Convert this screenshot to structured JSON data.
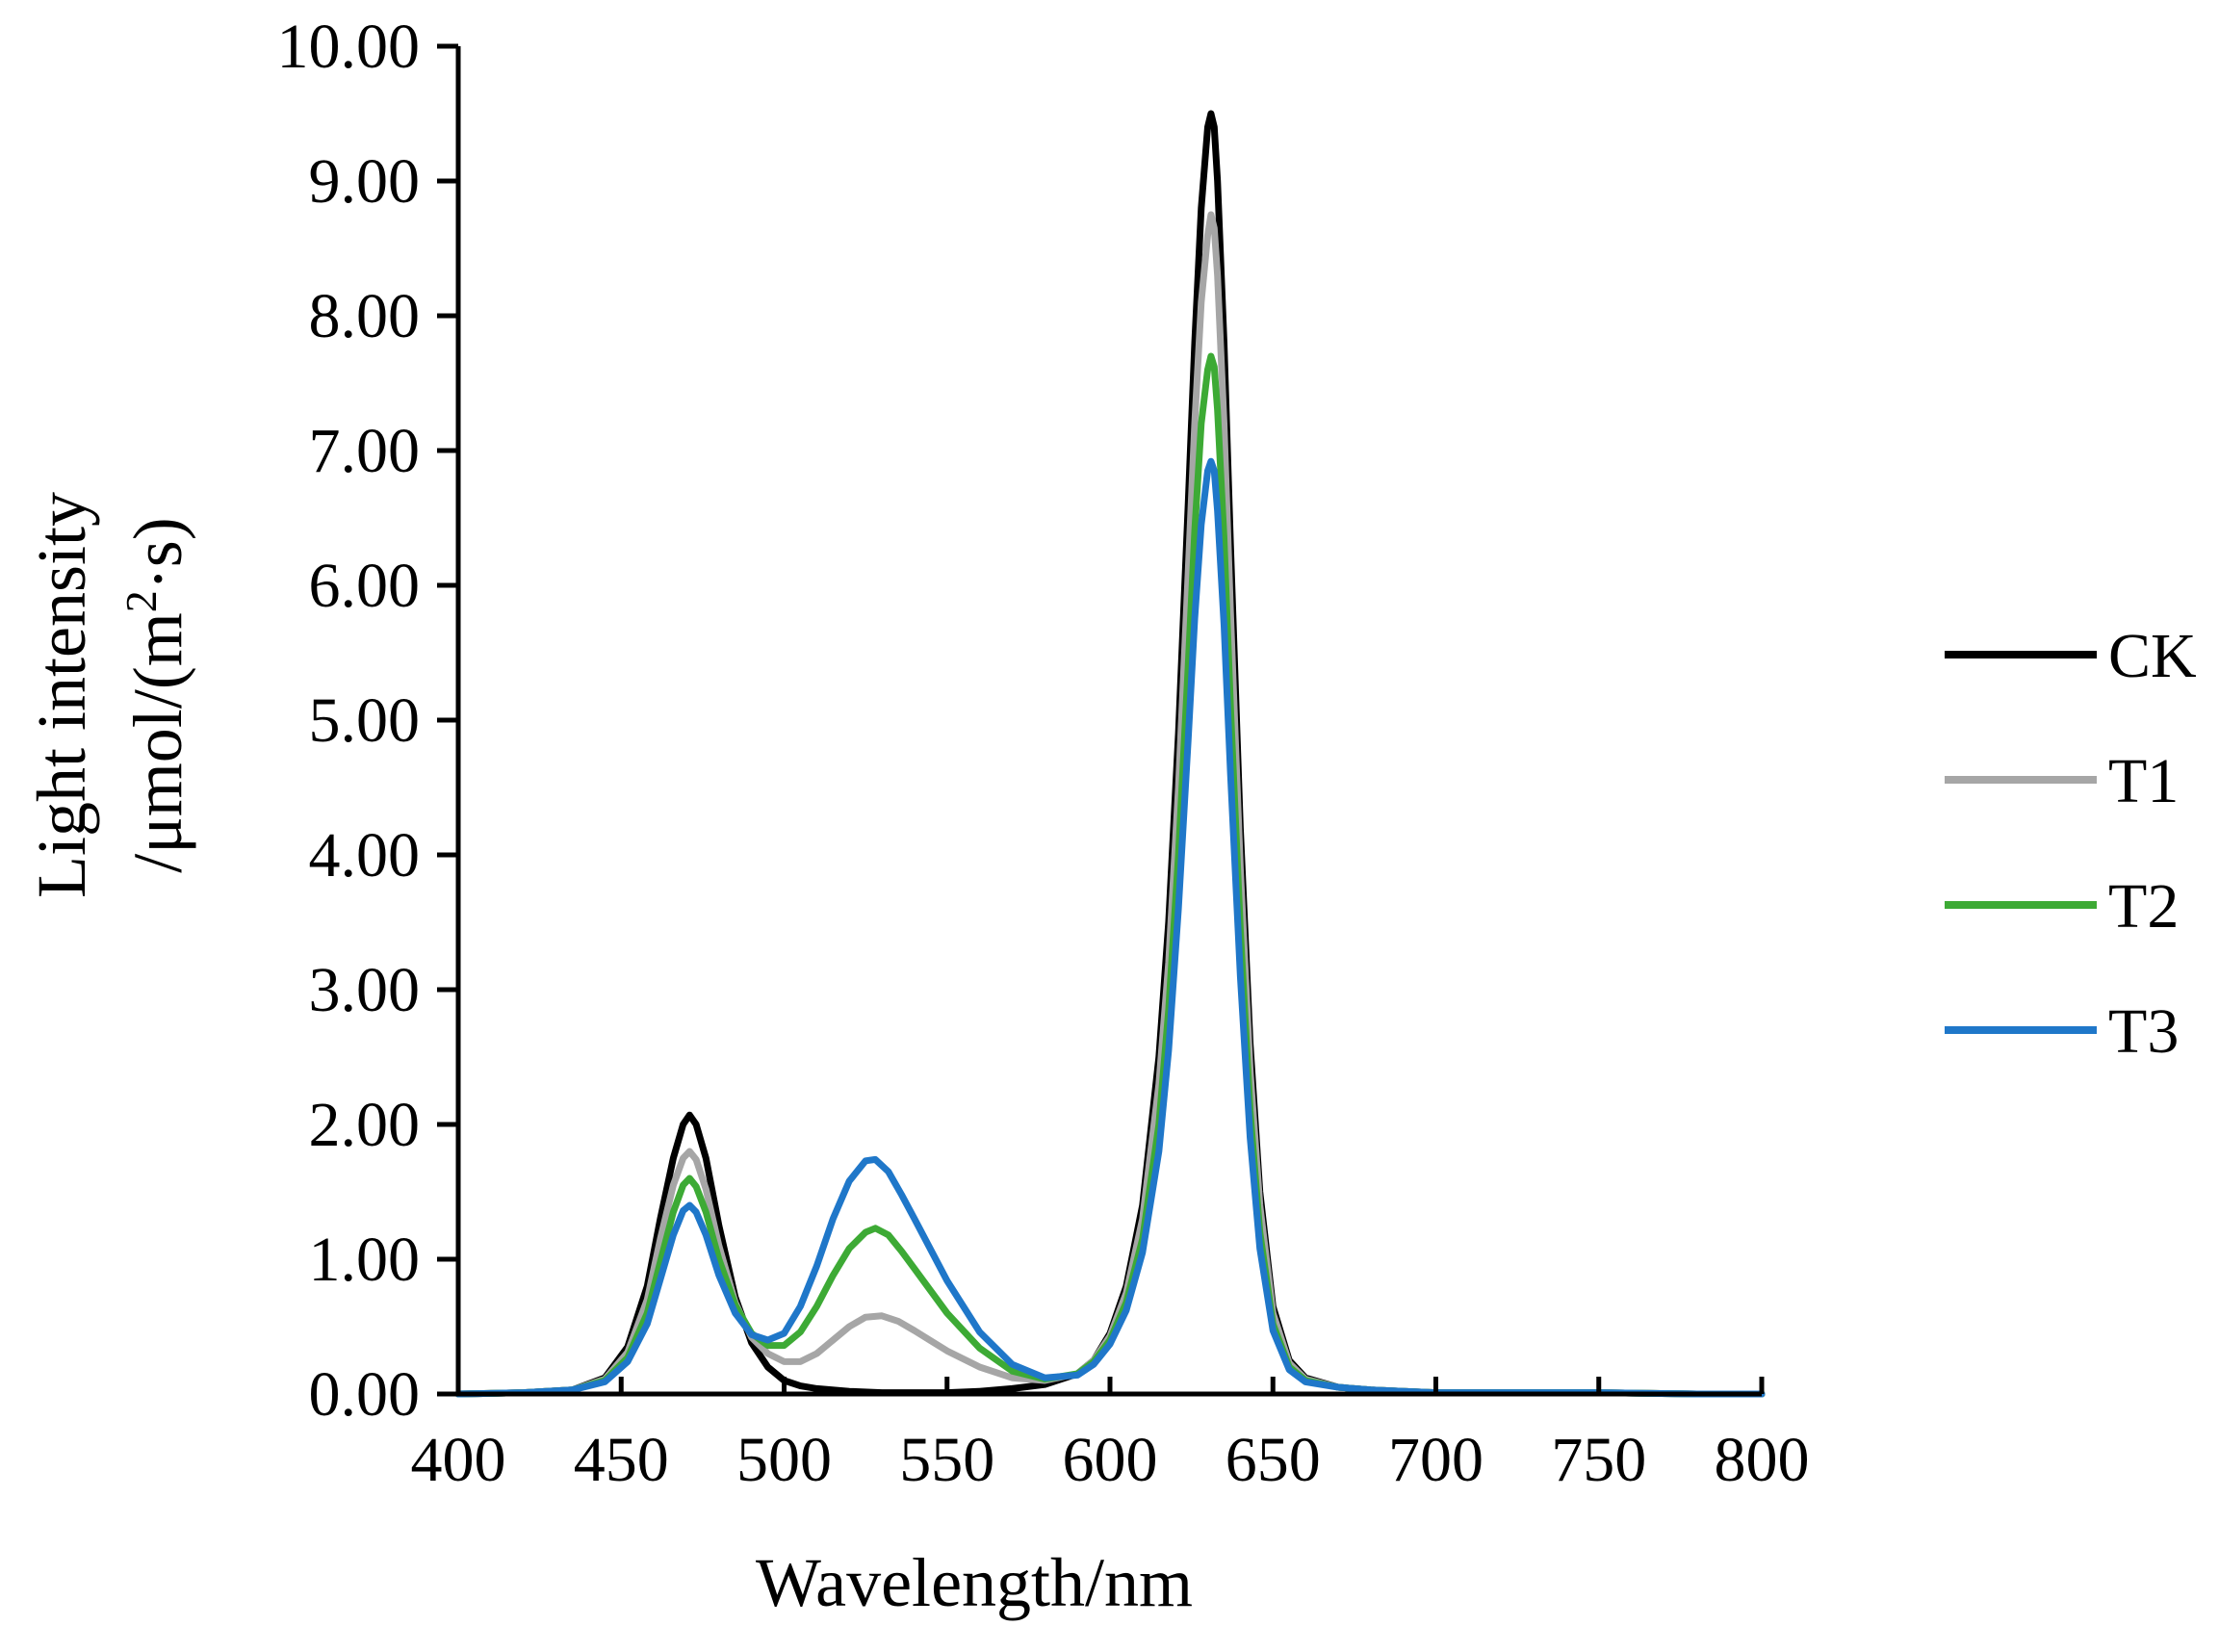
{
  "chart_data": {
    "type": "line",
    "xlabel": "Wavelength/nm",
    "ylabel_line1": "Light intensity",
    "ylabel_line2_prefix": "/μmol/(m",
    "ylabel_line2_sup": "2",
    "ylabel_line2_suffix": "·s)",
    "xlim": [
      400,
      800
    ],
    "ylim": [
      0,
      10
    ],
    "x_ticks": [
      {
        "value": 400,
        "label": "400"
      },
      {
        "value": 450,
        "label": "450"
      },
      {
        "value": 500,
        "label": "500"
      },
      {
        "value": 550,
        "label": "550"
      },
      {
        "value": 600,
        "label": "600"
      },
      {
        "value": 650,
        "label": "650"
      },
      {
        "value": 700,
        "label": "700"
      },
      {
        "value": 750,
        "label": "750"
      },
      {
        "value": 800,
        "label": "800"
      }
    ],
    "y_ticks": [
      {
        "value": 0,
        "label": "0.00"
      },
      {
        "value": 1,
        "label": "1.00"
      },
      {
        "value": 2,
        "label": "2.00"
      },
      {
        "value": 3,
        "label": "3.00"
      },
      {
        "value": 4,
        "label": "4.00"
      },
      {
        "value": 5,
        "label": "5.00"
      },
      {
        "value": 6,
        "label": "6.00"
      },
      {
        "value": 7,
        "label": "7.00"
      },
      {
        "value": 8,
        "label": "8.00"
      },
      {
        "value": 9,
        "label": "9.00"
      },
      {
        "value": 10,
        "label": "10.00"
      }
    ],
    "grid": false,
    "legend_position": "right",
    "series": [
      {
        "name": "CK",
        "color": "#000000",
        "x": [
          400,
          420,
          435,
          445,
          452,
          458,
          462,
          466,
          469,
          471,
          473,
          476,
          480,
          485,
          490,
          495,
          500,
          505,
          510,
          520,
          530,
          540,
          550,
          560,
          570,
          580,
          590,
          595,
          600,
          605,
          610,
          615,
          618,
          621,
          624,
          626,
          628,
          630,
          631,
          632,
          633,
          635,
          637,
          640,
          643,
          646,
          650,
          655,
          660,
          670,
          680,
          690,
          700,
          720,
          750,
          780,
          800
        ],
        "values": [
          0.0,
          0.01,
          0.03,
          0.12,
          0.35,
          0.8,
          1.3,
          1.75,
          2.0,
          2.07,
          2.0,
          1.75,
          1.25,
          0.72,
          0.38,
          0.2,
          0.1,
          0.06,
          0.04,
          0.02,
          0.01,
          0.01,
          0.01,
          0.02,
          0.04,
          0.07,
          0.15,
          0.25,
          0.45,
          0.8,
          1.4,
          2.5,
          3.5,
          4.9,
          6.6,
          7.8,
          8.8,
          9.4,
          9.5,
          9.4,
          9.0,
          7.8,
          6.3,
          4.2,
          2.6,
          1.5,
          0.65,
          0.25,
          0.12,
          0.05,
          0.03,
          0.02,
          0.01,
          0.01,
          0.01,
          0.0,
          0.0
        ]
      },
      {
        "name": "T1",
        "color": "#a6a6a6",
        "x": [
          400,
          420,
          435,
          445,
          452,
          458,
          462,
          466,
          469,
          471,
          473,
          476,
          480,
          485,
          490,
          495,
          500,
          505,
          510,
          515,
          520,
          525,
          530,
          535,
          540,
          550,
          560,
          570,
          580,
          590,
          595,
          600,
          605,
          610,
          615,
          618,
          621,
          624,
          626,
          628,
          630,
          631,
          632,
          633,
          635,
          637,
          640,
          643,
          646,
          650,
          655,
          660,
          670,
          680,
          690,
          700,
          720,
          750,
          780,
          800
        ],
        "values": [
          0.0,
          0.01,
          0.03,
          0.11,
          0.31,
          0.7,
          1.15,
          1.55,
          1.75,
          1.8,
          1.74,
          1.52,
          1.1,
          0.68,
          0.42,
          0.3,
          0.24,
          0.24,
          0.3,
          0.4,
          0.5,
          0.57,
          0.58,
          0.54,
          0.47,
          0.32,
          0.2,
          0.12,
          0.1,
          0.15,
          0.25,
          0.43,
          0.75,
          1.3,
          2.3,
          3.2,
          4.5,
          6.1,
          7.2,
          8.1,
          8.6,
          8.75,
          8.65,
          8.3,
          7.2,
          5.8,
          3.9,
          2.4,
          1.4,
          0.6,
          0.23,
          0.11,
          0.05,
          0.03,
          0.02,
          0.01,
          0.01,
          0.01,
          0.0,
          0.0
        ]
      },
      {
        "name": "T2",
        "color": "#3daa35",
        "x": [
          400,
          420,
          435,
          445,
          452,
          458,
          462,
          466,
          469,
          471,
          473,
          476,
          480,
          485,
          490,
          495,
          500,
          505,
          510,
          515,
          520,
          525,
          528,
          532,
          536,
          540,
          550,
          560,
          570,
          580,
          590,
          595,
          600,
          605,
          610,
          615,
          618,
          621,
          624,
          626,
          628,
          630,
          631,
          632,
          633,
          635,
          637,
          640,
          643,
          646,
          650,
          655,
          660,
          670,
          680,
          690,
          700,
          720,
          750,
          780,
          800
        ],
        "values": [
          0.0,
          0.01,
          0.03,
          0.1,
          0.27,
          0.6,
          0.98,
          1.35,
          1.55,
          1.6,
          1.54,
          1.35,
          1.0,
          0.66,
          0.45,
          0.36,
          0.36,
          0.46,
          0.65,
          0.88,
          1.08,
          1.2,
          1.23,
          1.18,
          1.06,
          0.93,
          0.6,
          0.34,
          0.17,
          0.11,
          0.15,
          0.24,
          0.4,
          0.68,
          1.15,
          2.0,
          2.85,
          4.0,
          5.4,
          6.4,
          7.2,
          7.6,
          7.7,
          7.62,
          7.3,
          6.35,
          5.1,
          3.45,
          2.1,
          1.2,
          0.52,
          0.2,
          0.1,
          0.05,
          0.03,
          0.02,
          0.01,
          0.01,
          0.01,
          0.0,
          0.0
        ]
      },
      {
        "name": "T3",
        "color": "#1f77c9",
        "x": [
          400,
          420,
          435,
          445,
          452,
          458,
          462,
          466,
          469,
          471,
          473,
          476,
          480,
          485,
          490,
          495,
          500,
          505,
          510,
          515,
          520,
          525,
          528,
          532,
          536,
          540,
          550,
          560,
          570,
          580,
          590,
          595,
          600,
          605,
          610,
          615,
          618,
          621,
          624,
          626,
          628,
          630,
          631,
          632,
          633,
          635,
          637,
          640,
          643,
          646,
          650,
          655,
          660,
          670,
          680,
          690,
          700,
          720,
          750,
          780,
          800
        ],
        "values": [
          0.0,
          0.01,
          0.03,
          0.09,
          0.24,
          0.52,
          0.85,
          1.18,
          1.36,
          1.4,
          1.35,
          1.18,
          0.88,
          0.6,
          0.44,
          0.4,
          0.45,
          0.65,
          0.95,
          1.3,
          1.58,
          1.73,
          1.74,
          1.65,
          1.48,
          1.3,
          0.84,
          0.46,
          0.22,
          0.12,
          0.14,
          0.22,
          0.37,
          0.62,
          1.05,
          1.8,
          2.55,
          3.6,
          4.85,
          5.75,
          6.45,
          6.85,
          6.92,
          6.85,
          6.55,
          5.7,
          4.6,
          3.1,
          1.9,
          1.08,
          0.47,
          0.18,
          0.09,
          0.05,
          0.03,
          0.02,
          0.01,
          0.01,
          0.01,
          0.0,
          0.0
        ]
      }
    ]
  }
}
